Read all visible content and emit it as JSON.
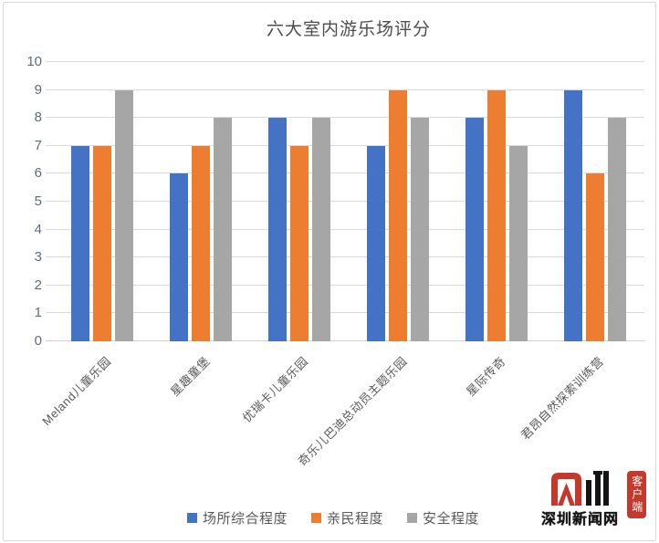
{
  "chart_data": {
    "type": "bar",
    "title": "六大室内游乐场评分",
    "categories": [
      "Meland儿童乐园",
      "星趣童堡",
      "优瑞卡儿童乐园",
      "奇乐儿巴迪总动员主题乐园",
      "星际传奇",
      "君昂自然探索训练营"
    ],
    "series": [
      {
        "name": "场所综合程度",
        "color": "#4472C4",
        "values": [
          7,
          6,
          8,
          7,
          8,
          9
        ]
      },
      {
        "name": "亲民程度",
        "color": "#ED7D31",
        "values": [
          7,
          7,
          7,
          9,
          9,
          6
        ]
      },
      {
        "name": "安全程度",
        "color": "#A6A6A6",
        "values": [
          9,
          8,
          8,
          8,
          7,
          8
        ]
      }
    ],
    "xlabel": "",
    "ylabel": "",
    "ylim": [
      0,
      10
    ],
    "yticks": [
      0,
      1,
      2,
      3,
      4,
      5,
      6,
      7,
      8,
      9,
      10
    ],
    "grid": true,
    "legend_position": "bottom"
  },
  "colors": {
    "grid_line": "#D9D9D9",
    "axis_text": "#595959",
    "title_text": "#4d4d4d",
    "logo_red": "#C3392C",
    "logo_black": "#141414"
  },
  "watermark": {
    "site_name": "深圳新闻网",
    "badge_vertical_text": "客户端"
  }
}
